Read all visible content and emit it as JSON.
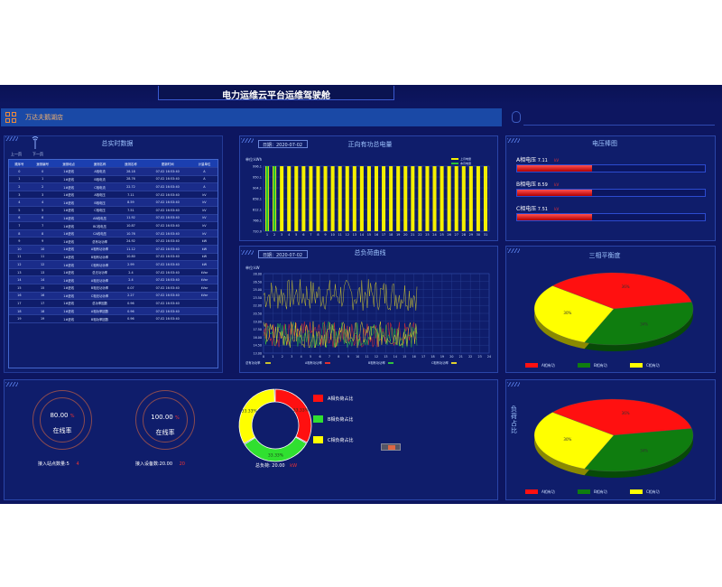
{
  "header": {
    "title": "电力运维云平台运维驾驶舱"
  },
  "nav": {
    "store": "万达夫鹅湖店"
  },
  "realtime": {
    "title": "总实时数据",
    "prev": "上一页",
    "next": "下一页",
    "columns": [
      "顺序号",
      "遥测编号",
      "遥测地点",
      "遥测名称",
      "更新时间",
      "计量单位"
    ],
    "extra_col": "遥测名称",
    "rows": [
      [
        "0",
        "0",
        "1#进线",
        "A相电流",
        "28.18",
        "07-02 16:53:40",
        "A"
      ],
      [
        "1",
        "1",
        "1#进线",
        "B相电流",
        "28.76",
        "07-02 16:53:40",
        "A"
      ],
      [
        "2",
        "2",
        "1#进线",
        "C相电流",
        "22.72",
        "07-02 16:53:40",
        "A"
      ],
      [
        "3",
        "3",
        "1#进线",
        "A相电压",
        "7.11",
        "07-02 16:53:40",
        "kV"
      ],
      [
        "4",
        "4",
        "1#进线",
        "B相电压",
        "8.59",
        "07-02 16:53:40",
        "kV"
      ],
      [
        "5",
        "5",
        "1#进线",
        "C相电压",
        "7.51",
        "07-02 16:53:40",
        "kV"
      ],
      [
        "6",
        "6",
        "1#进线",
        "AB线电压",
        "11.92",
        "07-02 16:53:40",
        "kV"
      ],
      [
        "7",
        "7",
        "1#进线",
        "BC线电压",
        "10.87",
        "07-02 16:53:40",
        "kV"
      ],
      [
        "8",
        "8",
        "1#进线",
        "CA线电压",
        "10.76",
        "07-02 16:53:40",
        "kV"
      ],
      [
        "9",
        "9",
        "1#进线",
        "总有功功率",
        "24.92",
        "07-02 16:53:40",
        "kW"
      ],
      [
        "10",
        "10",
        "1#进线",
        "A相有功功率",
        "11.12",
        "07-02 16:53:40",
        "kW"
      ],
      [
        "11",
        "11",
        "1#进线",
        "B相有功功率",
        "10.80",
        "07-02 16:53:40",
        "kW"
      ],
      [
        "12",
        "12",
        "1#进线",
        "C相有功功率",
        "2.99",
        "07-02 16:53:40",
        "kW"
      ],
      [
        "13",
        "13",
        "1#进线",
        "总无功功率",
        "2.4",
        "07-02 16:53:40",
        "kVar"
      ],
      [
        "14",
        "14",
        "1#进线",
        "A相无功功率",
        "2.4",
        "07-02 16:53:40",
        "kVar"
      ],
      [
        "15",
        "15",
        "1#进线",
        "B相无功功率",
        "0.07",
        "07-02 16:53:40",
        "kVar"
      ],
      [
        "16",
        "16",
        "1#进线",
        "C相无功功率",
        "2.27",
        "07-02 16:53:40",
        "kVar"
      ],
      [
        "17",
        "17",
        "1#进线",
        "总功率因数",
        "0.96",
        "07-02 16:53:40",
        ""
      ],
      [
        "18",
        "18",
        "1#进线",
        "A相功率因数",
        "0.96",
        "07-02 16:53:40",
        ""
      ],
      [
        "19",
        "19",
        "1#进线",
        "B相功率因数",
        "0.96",
        "07-02 16:53:40",
        ""
      ]
    ]
  },
  "energy": {
    "date": "日期：2020-07-02",
    "title": "正向有功总电量",
    "unit": "单位:kWh",
    "legend": [
      "上月电量",
      "本月电量"
    ]
  },
  "load": {
    "date": "日期：2020-07-02",
    "title": "总负荷曲线",
    "unit": "单位:kW",
    "legend": [
      "总有功功率",
      "A相有功功率",
      "B相有功功率",
      "C相有功功率"
    ]
  },
  "voltage": {
    "title": "电压棒图",
    "bars": [
      {
        "label": "A相电压",
        "value": "7.11",
        "unit": "kV",
        "fill": 0.4
      },
      {
        "label": "B相电压",
        "value": "8.59",
        "unit": "kV",
        "fill": 0.4
      },
      {
        "label": "C相电压",
        "value": "7.51",
        "unit": "kV",
        "fill": 0.4
      }
    ]
  },
  "balance": {
    "title": "三相平衡度",
    "legend": [
      "A相有功",
      "B相有功",
      "C相有功"
    ],
    "labels": [
      "36%",
      "34%",
      "30%"
    ]
  },
  "loadratio": {
    "title": "负荷占比",
    "legend": [
      "A相有功",
      "B相有功",
      "C相有功"
    ],
    "labels": [
      "36%",
      "34%",
      "30%"
    ]
  },
  "online1": {
    "value": "80.00",
    "unit": "%",
    "label": "在线率",
    "sub": "接入站点数量:5",
    "subval": "4"
  },
  "online2": {
    "value": "100.00",
    "unit": "%",
    "label": "在线率",
    "sub": "接入设备数:20.00",
    "subval": "20"
  },
  "donut": {
    "legend": [
      "A相负荷占比",
      "B相负荷占比",
      "C相负荷占比"
    ],
    "labels": [
      "33.33%",
      "33.33%",
      "33.33%"
    ],
    "total": "总负荷: 20.00",
    "total_unit": "kW"
  },
  "chart_data": [
    {
      "type": "bar",
      "title": "正向有功总电量",
      "ylabel": "单位:kWh",
      "ylim": [
        720.0,
        996.1
      ],
      "yticks": [
        "996.1",
        "950.1",
        "904.1",
        "858.1",
        "812.1",
        "766.1",
        "720.0"
      ],
      "categories": [
        "1",
        "2",
        "3",
        "4",
        "5",
        "6",
        "7",
        "8",
        "9",
        "10",
        "11",
        "12",
        "13",
        "14",
        "15",
        "16",
        "17",
        "18",
        "19",
        "20",
        "21",
        "22",
        "23",
        "24",
        "25",
        "26",
        "27",
        "28",
        "29",
        "30",
        "31"
      ],
      "series": [
        {
          "name": "上月电量",
          "values": [
            996,
            996,
            996,
            996,
            996,
            996,
            996,
            996,
            996,
            996,
            996,
            996,
            996,
            996,
            996,
            996,
            996,
            996,
            996,
            996,
            996,
            996,
            996,
            996,
            996,
            996,
            996,
            996,
            996,
            996,
            996
          ]
        },
        {
          "name": "本月电量",
          "values": [
            996,
            996,
            0,
            0,
            0,
            0,
            0,
            0,
            0,
            0,
            0,
            0,
            0,
            0,
            0,
            0,
            0,
            0,
            0,
            0,
            0,
            0,
            0,
            0,
            0,
            0,
            0,
            0,
            0,
            0,
            0
          ]
        }
      ]
    },
    {
      "type": "line",
      "title": "总负荷曲线",
      "ylabel": "单位:kW",
      "ylim": [
        13.0,
        28.0
      ],
      "yticks": [
        "28.00",
        "26.50",
        "25.00",
        "23.50",
        "22.00",
        "20.50",
        "19.00",
        "17.50",
        "16.00",
        "14.50",
        "13.00"
      ],
      "series": [
        {
          "name": "总有功功率",
          "range": [
            21,
            27
          ]
        },
        {
          "name": "A相有功功率",
          "range": [
            14,
            19
          ]
        },
        {
          "name": "B相有功功率",
          "range": [
            14,
            19
          ]
        },
        {
          "name": "C相有功功率",
          "range": [
            14,
            19
          ]
        }
      ]
    },
    {
      "type": "pie",
      "title": "三相平衡度",
      "categories": [
        "A相有功",
        "B相有功",
        "C相有功"
      ],
      "values": [
        36,
        34,
        30
      ]
    },
    {
      "type": "pie",
      "title": "负荷占比",
      "categories": [
        "A相有功",
        "B相有功",
        "C相有功"
      ],
      "values": [
        36,
        34,
        30
      ]
    },
    {
      "type": "pie",
      "title": "负荷占比(环形)",
      "categories": [
        "A相负荷占比",
        "B相负荷占比",
        "C相负荷占比"
      ],
      "values": [
        33.33,
        33.33,
        33.33
      ]
    }
  ]
}
